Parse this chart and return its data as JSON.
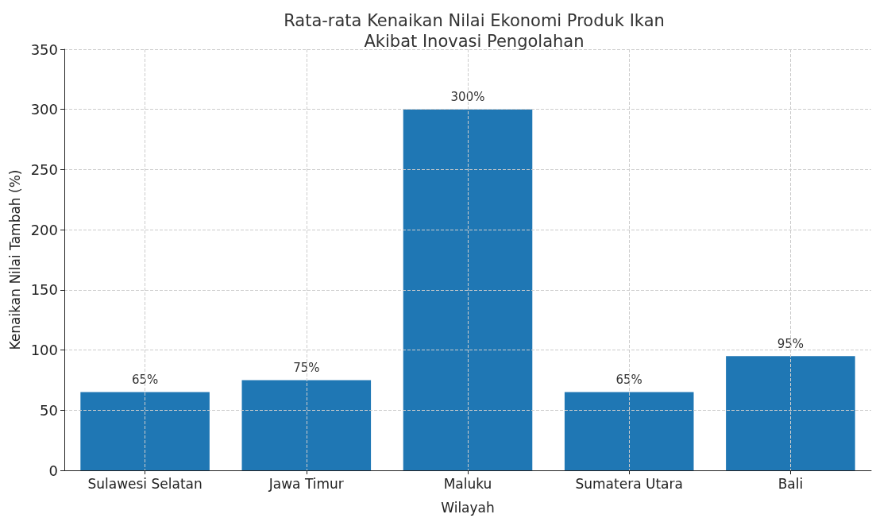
{
  "chart_data": {
    "type": "bar",
    "title": "Rata-rata Kenaikan Nilai Ekonomi Produk Ikan\nAkibat Inovasi Pengolahan",
    "xlabel": "Wilayah",
    "ylabel": "Kenaikan Nilai Tambah (%)",
    "categories": [
      "Sulawesi Selatan",
      "Jawa Timur",
      "Maluku",
      "Sumatera Utara",
      "Bali"
    ],
    "values": [
      65,
      75,
      300,
      65,
      95
    ],
    "value_labels": [
      "65%",
      "75%",
      "300%",
      "65%",
      "95%"
    ],
    "color": "#1f77b4",
    "ylim": [
      0,
      350
    ],
    "yticks": [
      0,
      50,
      100,
      150,
      200,
      250,
      300,
      350
    ],
    "grid": true
  }
}
